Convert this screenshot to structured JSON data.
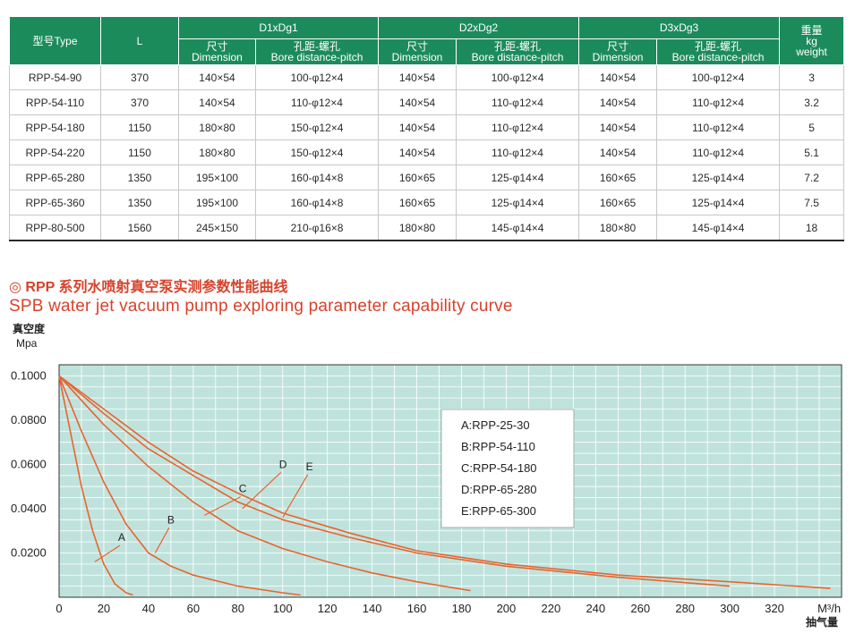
{
  "table": {
    "header": {
      "model": "型号Type",
      "l": "L",
      "groups": [
        "D1xDg1",
        "D2xDg2",
        "D3xDg3"
      ],
      "dimension_cn": "尺寸",
      "dimension_en": "Dimension",
      "bore_cn": "孔距-螺孔",
      "bore_en": "Bore distance-pitch",
      "weight_cn": "重量",
      "weight_unit": "kg",
      "weight_en": "weight"
    },
    "rows": [
      [
        "RPP-54-90",
        "370",
        "140×54",
        "100-φ12×4",
        "140×54",
        "100-φ12×4",
        "140×54",
        "100-φ12×4",
        "3"
      ],
      [
        "RPP-54-110",
        "370",
        "140×54",
        "110-φ12×4",
        "140×54",
        "110-φ12×4",
        "140×54",
        "110-φ12×4",
        "3.2"
      ],
      [
        "RPP-54-180",
        "1150",
        "180×80",
        "150-φ12×4",
        "140×54",
        "110-φ12×4",
        "140×54",
        "110-φ12×4",
        "5"
      ],
      [
        "RPP-54-220",
        "1150",
        "180×80",
        "150-φ12×4",
        "140×54",
        "110-φ12×4",
        "140×54",
        "110-φ12×4",
        "5.1"
      ],
      [
        "RPP-65-280",
        "1350",
        "195×100",
        "160-φ14×8",
        "160×65",
        "125-φ14×4",
        "160×65",
        "125-φ14×4",
        "7.2"
      ],
      [
        "RPP-65-360",
        "1350",
        "195×100",
        "160-φ14×8",
        "160×65",
        "125-φ14×4",
        "160×65",
        "125-φ14×4",
        "7.5"
      ],
      [
        "RPP-80-500",
        "1560",
        "245×150",
        "210-φ16×8",
        "180×80",
        "145-φ14×4",
        "180×80",
        "145-φ14×4",
        "18"
      ]
    ]
  },
  "section": {
    "marker": "◎",
    "title_cn": "RPP 系列水喷射真空泵实测参数性能曲线",
    "title_en": "SPB water jet vacuum pump exploring parameter capability curve"
  },
  "chart_data": {
    "type": "line",
    "ylabel_cn": "真空度",
    "ylabel_unit": "Mpa",
    "xlabel_cn": "抽气量",
    "xunit": "M³/h",
    "xlim": [
      0,
      350
    ],
    "ylim": [
      0,
      0.105
    ],
    "x_ticks": [
      0,
      20,
      40,
      60,
      80,
      100,
      120,
      140,
      160,
      180,
      200,
      220,
      240,
      260,
      280,
      300,
      320
    ],
    "y_ticks": [
      "0.0200",
      "0.0400",
      "0.0600",
      "0.0800",
      "0.1000"
    ],
    "y_tick_values": [
      0.02,
      0.04,
      0.06,
      0.08,
      0.1
    ],
    "grid": true,
    "background": "#bfe3dc",
    "line_color": "#e8642f",
    "legend": [
      "A:RPP-25-30",
      "B:RPP-54-110",
      "C:RPP-54-180",
      "D:RPP-65-280",
      "E:RPP-65-300"
    ],
    "series": [
      {
        "name": "A",
        "x": [
          0,
          5,
          10,
          15,
          20,
          25,
          30,
          33
        ],
        "y": [
          0.1,
          0.075,
          0.05,
          0.03,
          0.015,
          0.006,
          0.002,
          0.001
        ]
      },
      {
        "name": "B",
        "x": [
          0,
          10,
          20,
          30,
          40,
          50,
          60,
          80,
          100,
          108
        ],
        "y": [
          0.1,
          0.075,
          0.052,
          0.033,
          0.02,
          0.014,
          0.01,
          0.005,
          0.002,
          0.001
        ]
      },
      {
        "name": "C",
        "x": [
          0,
          20,
          40,
          60,
          80,
          100,
          120,
          140,
          160,
          184
        ],
        "y": [
          0.1,
          0.078,
          0.059,
          0.043,
          0.03,
          0.022,
          0.016,
          0.011,
          0.007,
          0.003
        ]
      },
      {
        "name": "D",
        "x": [
          0,
          20,
          40,
          60,
          80,
          100,
          130,
          160,
          200,
          250,
          300
        ],
        "y": [
          0.1,
          0.083,
          0.067,
          0.055,
          0.043,
          0.035,
          0.027,
          0.02,
          0.014,
          0.009,
          0.005
        ]
      },
      {
        "name": "E",
        "x": [
          0,
          20,
          40,
          60,
          80,
          100,
          130,
          160,
          200,
          250,
          300,
          345
        ],
        "y": [
          0.1,
          0.085,
          0.07,
          0.057,
          0.047,
          0.038,
          0.029,
          0.021,
          0.015,
          0.01,
          0.007,
          0.004
        ]
      }
    ],
    "curve_labels": [
      {
        "label": "A",
        "at": [
          16,
          0.016
        ],
        "text_at": [
          28,
          0.025
        ]
      },
      {
        "label": "B",
        "at": [
          43,
          0.02
        ],
        "text_at": [
          50,
          0.033
        ]
      },
      {
        "label": "C",
        "at": [
          65,
          0.037
        ],
        "text_at": [
          82,
          0.047
        ]
      },
      {
        "label": "D",
        "at": [
          82,
          0.04
        ],
        "text_at": [
          100,
          0.058
        ]
      },
      {
        "label": "E",
        "at": [
          100,
          0.036
        ],
        "text_at": [
          112,
          0.057
        ]
      }
    ]
  }
}
